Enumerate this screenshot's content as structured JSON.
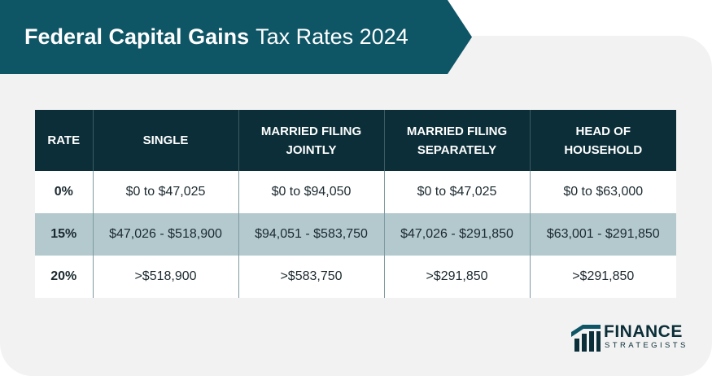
{
  "title": {
    "bold": "Federal Capital Gains",
    "regular": "Tax Rates 2024"
  },
  "table": {
    "headers": [
      [
        "RATE"
      ],
      [
        "SINGLE"
      ],
      [
        "MARRIED FILING",
        "JOINTLY"
      ],
      [
        "MARRIED FILING",
        "SEPARATELY"
      ],
      [
        "HEAD OF",
        "HOUSEHOLD"
      ]
    ],
    "rows": [
      [
        "0%",
        "$0 to $47,025",
        "$0 to $94,050",
        "$0 to $47,025",
        "$0 to $63,000"
      ],
      [
        "15%",
        "$47,026 - $518,900",
        "$94,051 - $583,750",
        "$47,026 - $291,850",
        "$63,001 - $291,850"
      ],
      [
        "20%",
        ">$518,900",
        ">$583,750",
        ">$291,850",
        ">$291,850"
      ]
    ]
  },
  "logo": {
    "line1": "FINANCE",
    "line2": "STRATEGISTS",
    "icon": "bar-chart-logo-icon"
  },
  "colors": {
    "banner": "#0e5566",
    "header": "#0b2e38",
    "shaded_row": "#b3c9cd",
    "background": "#f2f2f2"
  }
}
